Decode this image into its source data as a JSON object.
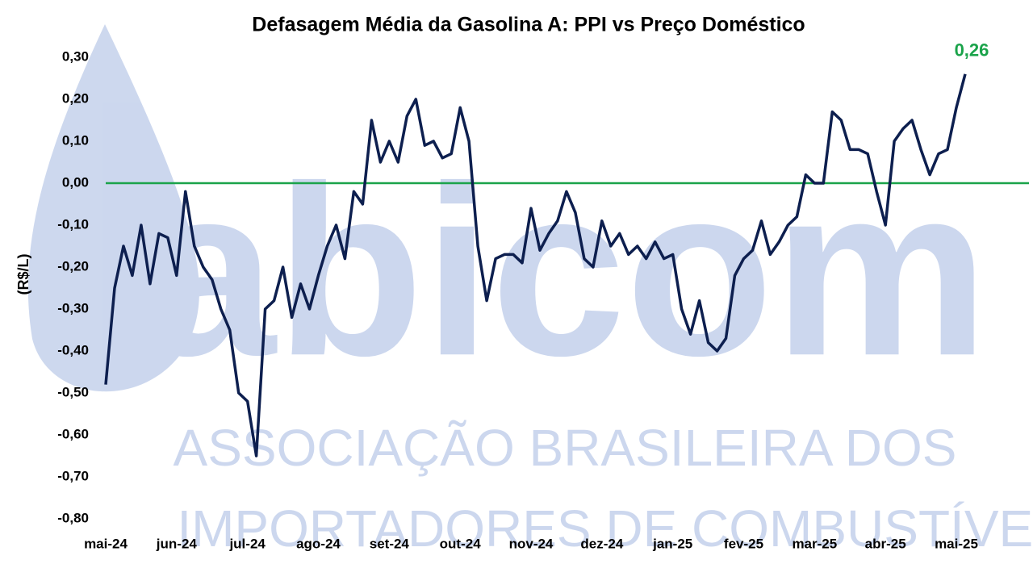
{
  "chart_data": {
    "type": "line",
    "title": "Defasagem Média da Gasolina A: PPI vs Preço Doméstico",
    "y_label": "(R$/L)",
    "categories": [
      "mai-24",
      null,
      null,
      null,
      null,
      null,
      null,
      null,
      "jun-24",
      null,
      null,
      null,
      null,
      null,
      null,
      null,
      "jul-24",
      null,
      null,
      null,
      null,
      null,
      null,
      null,
      "ago-24",
      null,
      null,
      null,
      null,
      null,
      null,
      null,
      "set-24",
      null,
      null,
      null,
      null,
      null,
      null,
      null,
      "out-24",
      null,
      null,
      null,
      null,
      null,
      null,
      null,
      "nov-24",
      null,
      null,
      null,
      null,
      null,
      null,
      null,
      "dez-24",
      null,
      null,
      null,
      null,
      null,
      null,
      null,
      "jan-25",
      null,
      null,
      null,
      null,
      null,
      null,
      null,
      "fev-25",
      null,
      null,
      null,
      null,
      null,
      null,
      null,
      "mar-25",
      null,
      null,
      null,
      null,
      null,
      null,
      null,
      "abr-25",
      null,
      null,
      null,
      null,
      null,
      null,
      null,
      "mai-25",
      null
    ],
    "series": [
      {
        "name": "Defasagem",
        "color": "#0d1f4f",
        "values": [
          -0.48,
          -0.25,
          -0.15,
          -0.22,
          -0.1,
          -0.24,
          -0.12,
          -0.13,
          -0.22,
          -0.02,
          -0.15,
          -0.2,
          -0.23,
          -0.3,
          -0.35,
          -0.5,
          -0.52,
          -0.65,
          -0.3,
          -0.28,
          -0.2,
          -0.32,
          -0.24,
          -0.3,
          -0.22,
          -0.15,
          -0.1,
          -0.18,
          -0.02,
          -0.05,
          0.15,
          0.05,
          0.1,
          0.05,
          0.16,
          0.2,
          0.09,
          0.1,
          0.06,
          0.07,
          0.18,
          0.1,
          -0.15,
          -0.28,
          -0.18,
          -0.17,
          -0.17,
          -0.19,
          -0.06,
          -0.16,
          -0.12,
          -0.09,
          -0.02,
          -0.07,
          -0.18,
          -0.2,
          -0.09,
          -0.15,
          -0.12,
          -0.17,
          -0.15,
          -0.18,
          -0.14,
          -0.18,
          -0.17,
          -0.3,
          -0.36,
          -0.28,
          -0.38,
          -0.4,
          -0.37,
          -0.22,
          -0.18,
          -0.16,
          -0.09,
          -0.17,
          -0.14,
          -0.1,
          -0.08,
          0.02,
          0.0,
          0.0,
          0.17,
          0.15,
          0.08,
          0.08,
          0.07,
          -0.02,
          -0.1,
          0.1,
          0.13,
          0.15,
          0.08,
          0.02,
          0.07,
          0.08,
          0.18,
          0.26
        ]
      }
    ],
    "annotations": [
      {
        "index": 97,
        "text": "0,26",
        "color": "#1aa34a"
      }
    ],
    "ylim": [
      -0.8,
      0.3
    ],
    "yticks": [
      {
        "value": 0.3,
        "label": "0,30"
      },
      {
        "value": 0.2,
        "label": "0,20"
      },
      {
        "value": 0.1,
        "label": "0,10"
      },
      {
        "value": 0,
        "label": "0,00"
      },
      {
        "value": -0.1,
        "label": "-0,10"
      },
      {
        "value": -0.2,
        "label": "-0,20"
      },
      {
        "value": -0.3,
        "label": "-0,30"
      },
      {
        "value": -0.4,
        "label": "-0,40"
      },
      {
        "value": -0.5,
        "label": "-0,50"
      },
      {
        "value": -0.6,
        "label": "-0,60"
      },
      {
        "value": -0.7,
        "label": "-0,70"
      },
      {
        "value": -0.8,
        "label": "-0,80"
      }
    ],
    "grid": false,
    "zero_line_color": "#1aa34a"
  }
}
